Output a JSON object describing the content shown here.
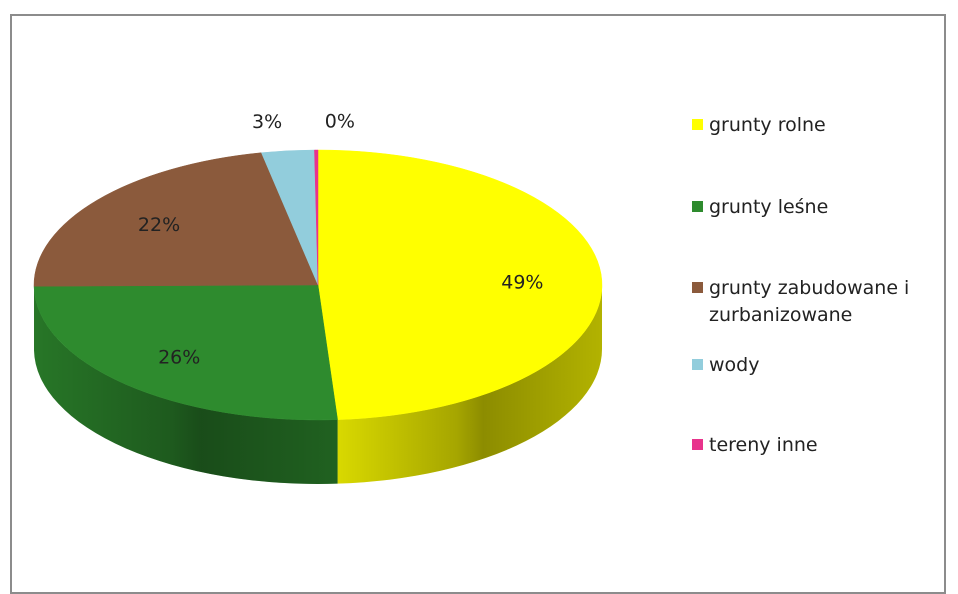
{
  "chart_data": {
    "type": "pie",
    "three_d": true,
    "start_angle_deg": 0,
    "direction": "clockwise",
    "slices": [
      {
        "name": "grunty rolne",
        "value": 49,
        "label": "49%",
        "color": "#ffff00"
      },
      {
        "name": "grunty leśne",
        "value": 26,
        "label": "26%",
        "color": "#2e8b2e"
      },
      {
        "name": "grunty zabudowane i zurbanizowane",
        "value": 22,
        "label": "22%",
        "color": "#8b5a3c"
      },
      {
        "name": "wody",
        "value": 3,
        "label": "3%",
        "color": "#92cddc"
      },
      {
        "name": "tereny inne",
        "value": 0.2,
        "label": "0%",
        "color": "#e8338c"
      }
    ],
    "legend": {
      "placement": "right",
      "items": [
        "grunty rolne",
        "grunty leśne",
        "grunty zabudowane i zurbanizowane",
        "wody",
        "tereny inne"
      ]
    }
  }
}
